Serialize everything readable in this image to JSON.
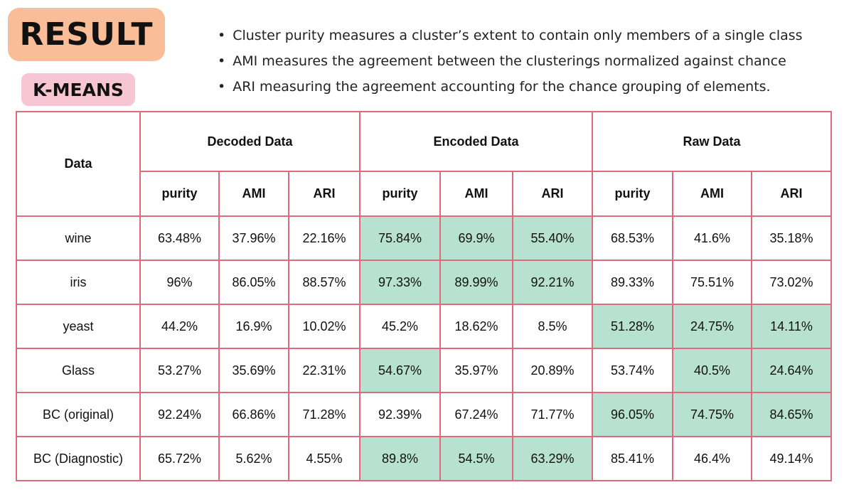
{
  "result_label": "RESULT",
  "kmeans_label": "K-MEANS",
  "bullets": [
    "Cluster purity measures a cluster’s extent to contain only members of a single class",
    "AMI measures the agreement between the clusterings normalized against chance",
    "ARI measuring the agreement accounting for the chance grouping of elements."
  ],
  "table": {
    "data_header": "Data",
    "groups": [
      "Decoded Data",
      "Encoded Data",
      "Raw Data"
    ],
    "metrics": [
      "purity",
      "AMI",
      "ARI"
    ],
    "highlight_color": "#b7e1d0",
    "border_color": "#e06a7d",
    "rows": [
      {
        "name": "wine",
        "values": [
          "63.48%",
          "37.96%",
          "22.16%",
          "75.84%",
          "69.9%",
          "55.40%",
          "68.53%",
          "41.6%",
          "35.18%"
        ],
        "highlight": [
          3,
          4,
          5
        ]
      },
      {
        "name": "iris",
        "values": [
          "96%",
          "86.05%",
          "88.57%",
          "97.33%",
          "89.99%",
          "92.21%",
          "89.33%",
          "75.51%",
          "73.02%"
        ],
        "highlight": [
          3,
          4,
          5
        ]
      },
      {
        "name": "yeast",
        "values": [
          "44.2%",
          "16.9%",
          "10.02%",
          "45.2%",
          "18.62%",
          "8.5%",
          "51.28%",
          "24.75%",
          "14.11%"
        ],
        "highlight": [
          6,
          7,
          8
        ]
      },
      {
        "name": "Glass",
        "values": [
          "53.27%",
          "35.69%",
          "22.31%",
          "54.67%",
          "35.97%",
          "20.89%",
          "53.74%",
          "40.5%",
          "24.64%"
        ],
        "highlight": [
          3,
          7,
          8
        ]
      },
      {
        "name": "BC (original)",
        "values": [
          "92.24%",
          "66.86%",
          "71.28%",
          "92.39%",
          "67.24%",
          "71.77%",
          "96.05%",
          "74.75%",
          "84.65%"
        ],
        "highlight": [
          6,
          7,
          8
        ]
      },
      {
        "name": "BC (Diagnostic)",
        "values": [
          "65.72%",
          "5.62%",
          "4.55%",
          "89.8%",
          "54.5%",
          "63.29%",
          "85.41%",
          "46.4%",
          "49.14%"
        ],
        "highlight": [
          3,
          4,
          5
        ]
      }
    ]
  }
}
